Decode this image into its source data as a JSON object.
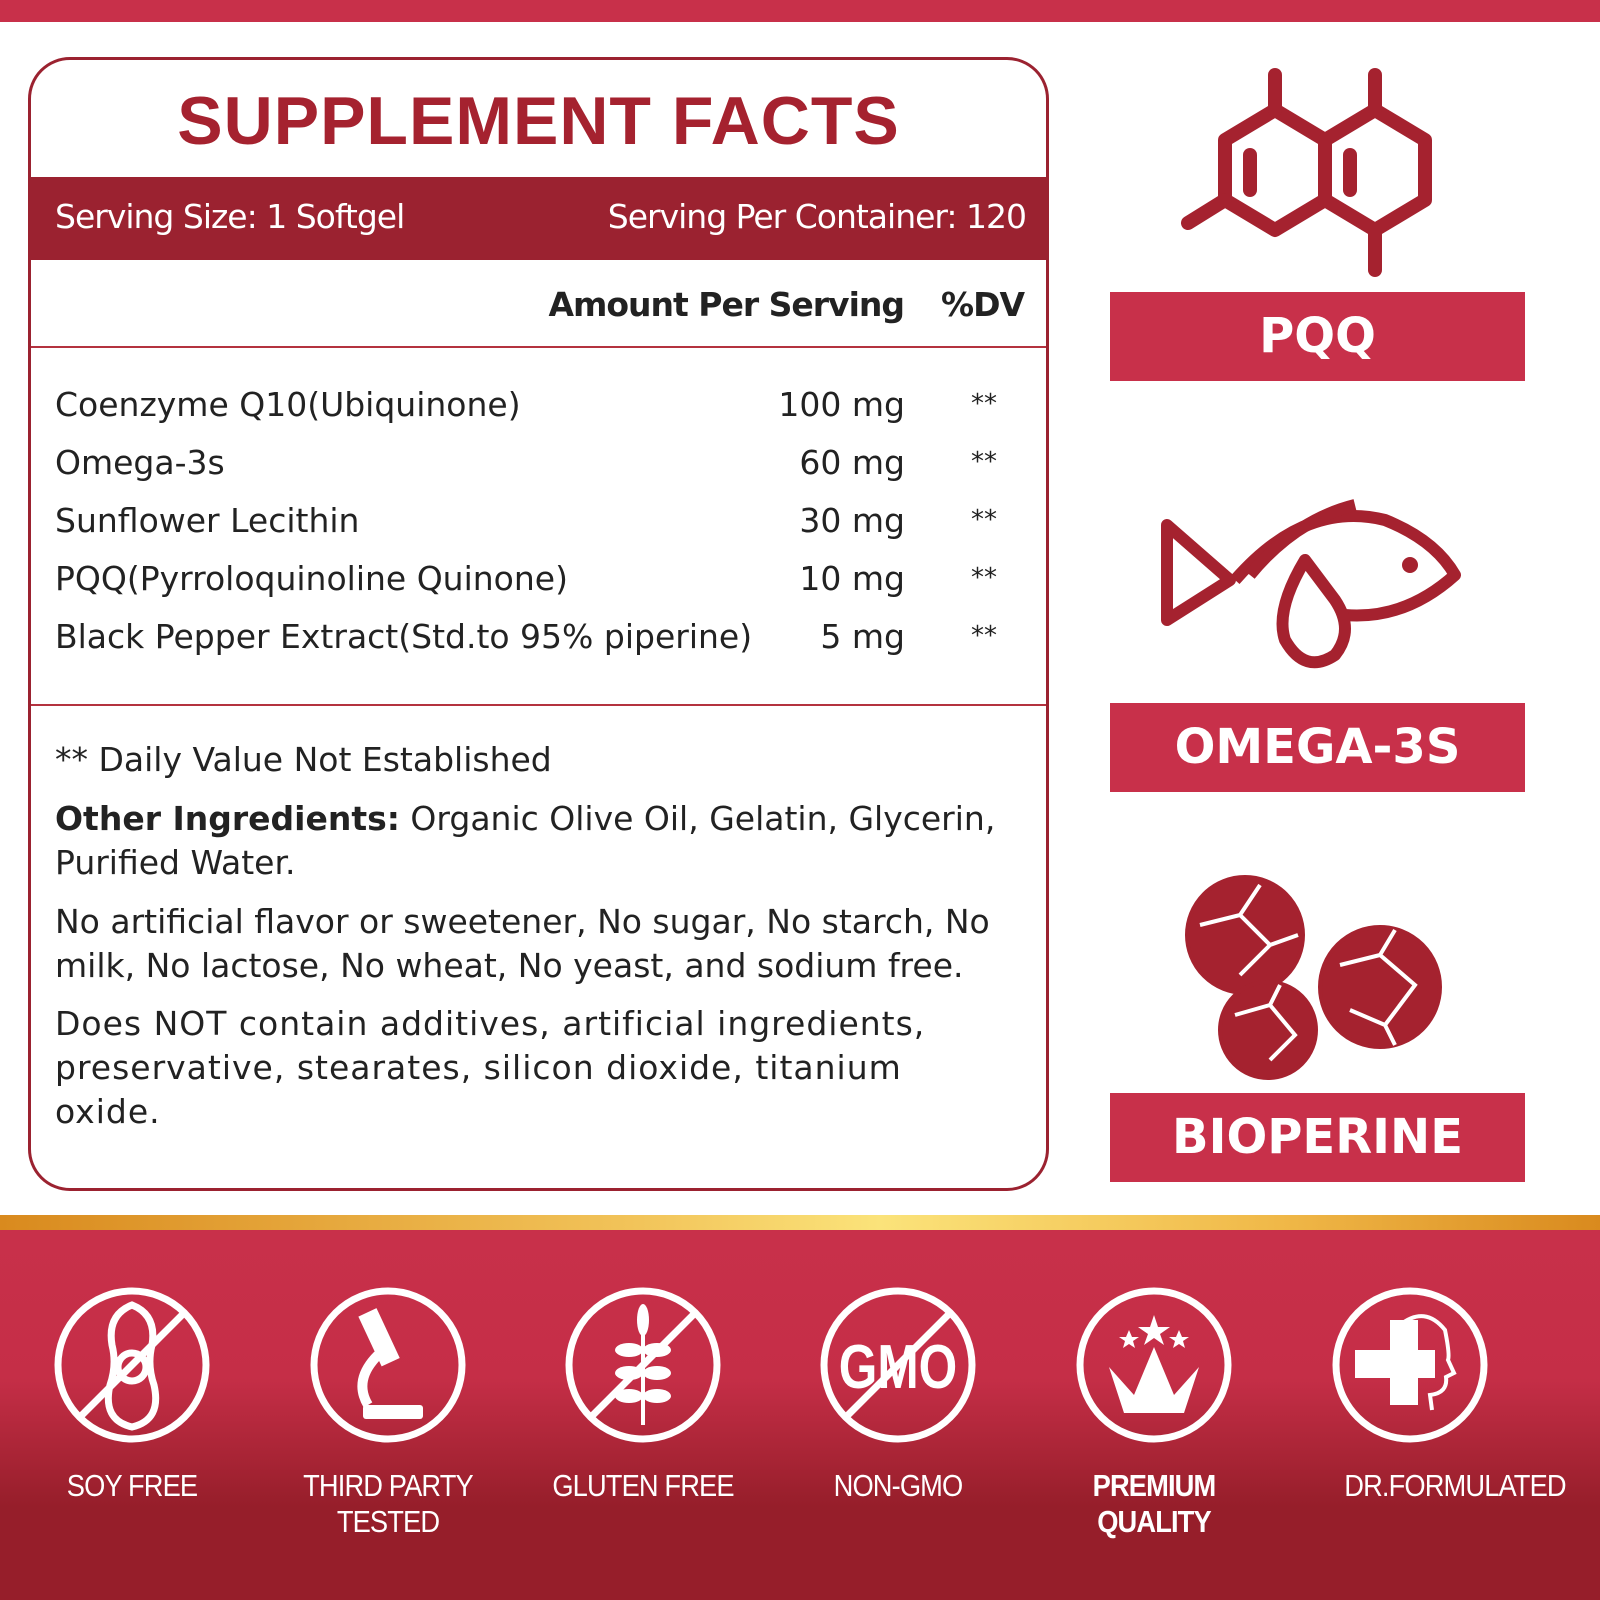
{
  "colors": {
    "accent": "#c8304a",
    "dark_red": "#9b2230",
    "gold": "#f2c45a"
  },
  "facts": {
    "title": "SUPPLEMENT FACTS",
    "serving_size": "Serving Size:  1 Softgel",
    "servings_per_container": "Serving Per Container: 120",
    "amount_header": "Amount Per Serving",
    "dv_header": "%DV",
    "rows": [
      {
        "name": "Coenzyme Q10(Ubiquinone)",
        "amount": "100 mg",
        "dv": "**"
      },
      {
        "name": "Omega-3s",
        "amount": "60 mg",
        "dv": "**"
      },
      {
        "name": "Sunflower Lecithin",
        "amount": "30 mg",
        "dv": "**"
      },
      {
        "name": "PQQ(Pyrroloquinoline Quinone)",
        "amount": "10 mg",
        "dv": "**"
      },
      {
        "name": "Black Pepper Extract(Std.to 95% piperine)",
        "amount": "5 mg",
        "dv": "**"
      }
    ],
    "footnote": "** Daily Value Not Established",
    "other_label": "Other Ingredients:",
    "other_text": " Organic Olive Oil, Gelatin, Glycerin, Purified Water.",
    "free_from": "No artificial flavor or sweetener, No sugar, No starch, No milk, No lactose, No wheat, No yeast, and sodium free.",
    "not_contain": "Does NOT contain additives, artificial ingredients, preservative, stearates, silicon dioxide, titanium oxide."
  },
  "ingredients": [
    {
      "label": "PQQ",
      "icon": "molecule-icon"
    },
    {
      "label": "OMEGA-3S",
      "icon": "fish-oil-icon"
    },
    {
      "label": "BIOPERINE",
      "icon": "peppercorn-icon"
    }
  ],
  "badges": [
    {
      "label": "SOY FREE",
      "icon": "soy-free-icon"
    },
    {
      "label": "THIRD PARTY TESTED",
      "icon": "microscope-icon"
    },
    {
      "label": "GLUTEN FREE",
      "icon": "gluten-free-icon"
    },
    {
      "label": "NON-GMO",
      "icon": "non-gmo-icon",
      "icon_text": "GMO"
    },
    {
      "label": "PREMIUM QUALITY",
      "icon": "crown-icon"
    },
    {
      "label": "DR.FORMULATED",
      "icon": "doctor-icon"
    }
  ]
}
